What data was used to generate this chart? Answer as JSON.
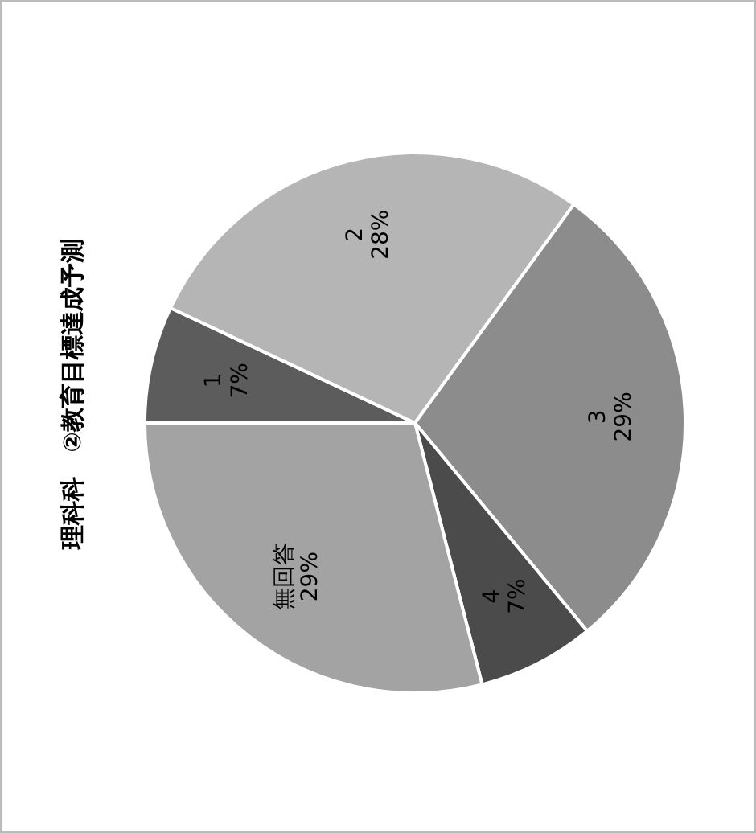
{
  "chart_data": {
    "type": "pie",
    "title": "理科科　②教育目標達成予測",
    "categories": [
      "1",
      "2",
      "3",
      "4",
      "無回答"
    ],
    "values": [
      7,
      28,
      29,
      7,
      29
    ],
    "colors": [
      "#5c5c5c",
      "#b5b5b5",
      "#8c8c8c",
      "#4b4b4b",
      "#a3a3a3"
    ],
    "value_labels": [
      "7%",
      "28%",
      "29%",
      "7%",
      "29%"
    ]
  }
}
